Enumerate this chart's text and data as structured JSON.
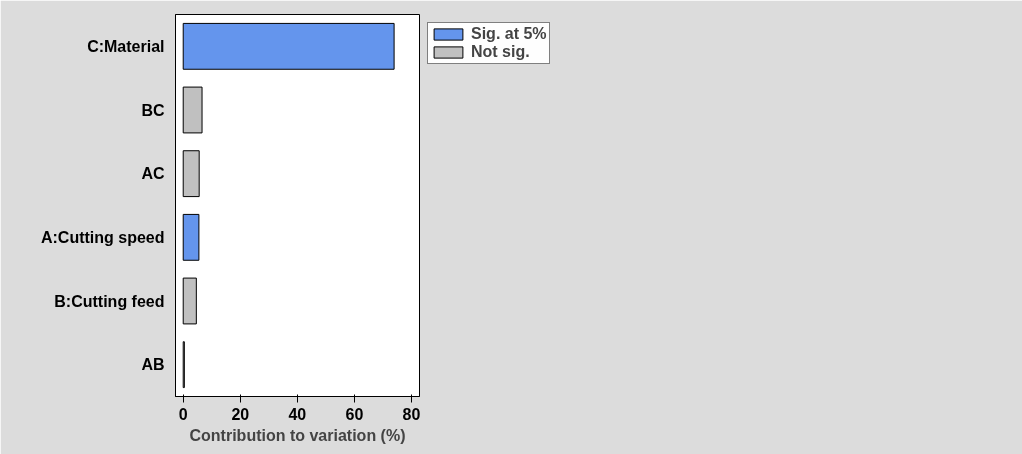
{
  "chart_data": {
    "type": "bar",
    "orientation": "horizontal",
    "xlabel": "Contribution to variation (%)",
    "categories": [
      "C:Material",
      "BC",
      "AC",
      "A:Cutting speed",
      "B:Cutting feed",
      "AB"
    ],
    "series": [
      {
        "name": "Sig. at 5%",
        "color": "#6495ed",
        "values": [
          73.9,
          null,
          null,
          5.5,
          null,
          null
        ]
      },
      {
        "name": "Not sig.",
        "color": "#c0c0c0",
        "values": [
          null,
          6.6,
          5.6,
          null,
          4.6,
          0.4
        ]
      }
    ],
    "xlim": [
      -2.7,
      82.8
    ],
    "xticks": [
      0,
      20,
      40,
      60,
      80
    ],
    "grid": false,
    "legend": "top right"
  }
}
